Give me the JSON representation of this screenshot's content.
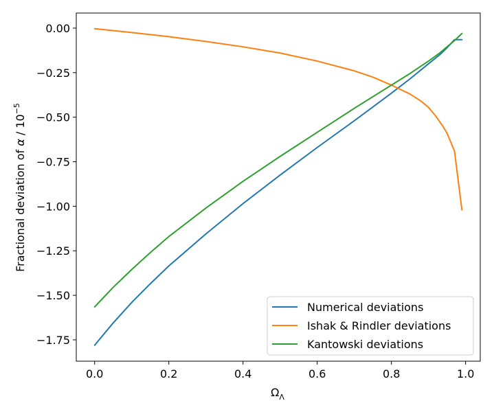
{
  "chart_data": {
    "type": "line",
    "title": "",
    "xlabel_main": "Ω",
    "xlabel_sub": "Λ",
    "ylabel_text": "Fractional deviation of ",
    "ylabel_symbol": "α",
    "ylabel_unit": " / 10",
    "ylabel_exp": "−5",
    "xlim": [
      -0.0495,
      1.0395
    ],
    "ylim": [
      -1.8697,
      0.0846
    ],
    "xticks": [
      0.0,
      0.2,
      0.4,
      0.6,
      0.8,
      1.0
    ],
    "xtick_labels": [
      "0.0",
      "0.2",
      "0.4",
      "0.6",
      "0.8",
      "1.0"
    ],
    "yticks": [
      0.0,
      -0.25,
      -0.5,
      -0.75,
      -1.0,
      -1.25,
      -1.5,
      -1.75
    ],
    "ytick_labels": [
      "0.00",
      "−0.25",
      "−0.50",
      "−0.75",
      "−1.00",
      "−1.25",
      "−1.50",
      "−1.75"
    ],
    "grid": false,
    "legend_position": "lower-right",
    "series": [
      {
        "name": "Numerical deviations",
        "color": "#1f77b4",
        "x": [
          0.0,
          0.05,
          0.1,
          0.15,
          0.2,
          0.3,
          0.4,
          0.5,
          0.6,
          0.7,
          0.8,
          0.85,
          0.9,
          0.93,
          0.95,
          0.97,
          0.99
        ],
        "y": [
          -1.78,
          -1.655,
          -1.54,
          -1.435,
          -1.335,
          -1.155,
          -0.985,
          -0.825,
          -0.67,
          -0.52,
          -0.365,
          -0.285,
          -0.2,
          -0.15,
          -0.11,
          -0.065,
          -0.065
        ]
      },
      {
        "name": "Ishak & Rindler deviations",
        "color": "#ff7f0e",
        "x": [
          0.0,
          0.1,
          0.2,
          0.3,
          0.4,
          0.5,
          0.6,
          0.7,
          0.75,
          0.8,
          0.85,
          0.88,
          0.9,
          0.92,
          0.94,
          0.95,
          0.97,
          0.99
        ],
        "y": [
          -0.003,
          -0.025,
          -0.048,
          -0.075,
          -0.105,
          -0.14,
          -0.185,
          -0.24,
          -0.275,
          -0.32,
          -0.37,
          -0.41,
          -0.445,
          -0.495,
          -0.555,
          -0.59,
          -0.69,
          -1.02
        ]
      },
      {
        "name": "Kantowski deviations",
        "color": "#2ca02c",
        "x": [
          0.0,
          0.05,
          0.1,
          0.15,
          0.2,
          0.3,
          0.4,
          0.5,
          0.6,
          0.7,
          0.8,
          0.85,
          0.9,
          0.93,
          0.95,
          0.97,
          0.99
        ],
        "y": [
          -1.565,
          -1.455,
          -1.355,
          -1.26,
          -1.17,
          -1.01,
          -0.86,
          -0.72,
          -0.585,
          -0.45,
          -0.32,
          -0.255,
          -0.185,
          -0.14,
          -0.105,
          -0.07,
          -0.03
        ]
      }
    ]
  }
}
